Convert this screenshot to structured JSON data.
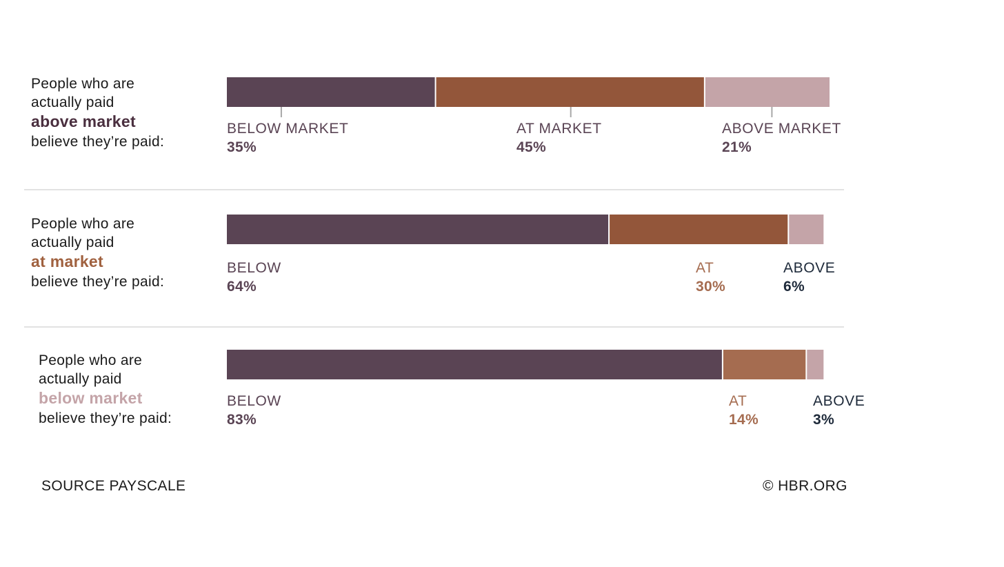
{
  "chart_data": {
    "type": "bar",
    "stacked": true,
    "orientation": "horizontal",
    "categories": [
      "above market",
      "at market",
      "below market"
    ],
    "row_labels": [
      {
        "prefix_1": "People who are",
        "prefix_2": "actually paid",
        "emphasis": "above market",
        "suffix": "believe they’re paid:",
        "emphasis_color": "#4a2f3f"
      },
      {
        "prefix_1": "People who are",
        "prefix_2": "actually paid",
        "emphasis": "at market",
        "suffix": "believe they’re paid:",
        "emphasis_color": "#a0613f"
      },
      {
        "prefix_1": "People who are",
        "prefix_2": "actually paid",
        "emphasis": "below market",
        "suffix": "believe they’re paid:",
        "emphasis_color": "#c4a4a8"
      }
    ],
    "series": [
      {
        "key": "below",
        "color": "#5a4454",
        "label_color": "#5a4454",
        "values": [
          35,
          64,
          83
        ],
        "labels": [
          "BELOW MARKET",
          "BELOW",
          "BELOW"
        ],
        "value_labels": [
          "35%",
          "64%",
          "83%"
        ]
      },
      {
        "key": "at",
        "colors": [
          "#93563a",
          "#93563a",
          "#a56c50"
        ],
        "label_colors": [
          "#5a4454",
          "#a56c50",
          "#a56c50"
        ],
        "values": [
          45,
          30,
          14
        ],
        "labels": [
          "AT MARKET",
          "AT",
          "AT"
        ],
        "value_labels": [
          "45%",
          "30%",
          "14%"
        ]
      },
      {
        "key": "above",
        "color": "#c4a4a8",
        "label_colors": [
          "#5a4454",
          "#1e2a3a",
          "#1e2a3a"
        ],
        "values": [
          21,
          6,
          3
        ],
        "labels": [
          "ABOVE MARKET",
          "ABOVE",
          "ABOVE"
        ],
        "value_labels": [
          "21%",
          "6%",
          "3%"
        ]
      }
    ],
    "xlim": [
      0,
      101
    ],
    "grid": false,
    "legend": "none",
    "tick_markers": "first row only"
  },
  "footer": {
    "source": "SOURCE PAYSCALE",
    "credit": "© HBR.ORG"
  }
}
